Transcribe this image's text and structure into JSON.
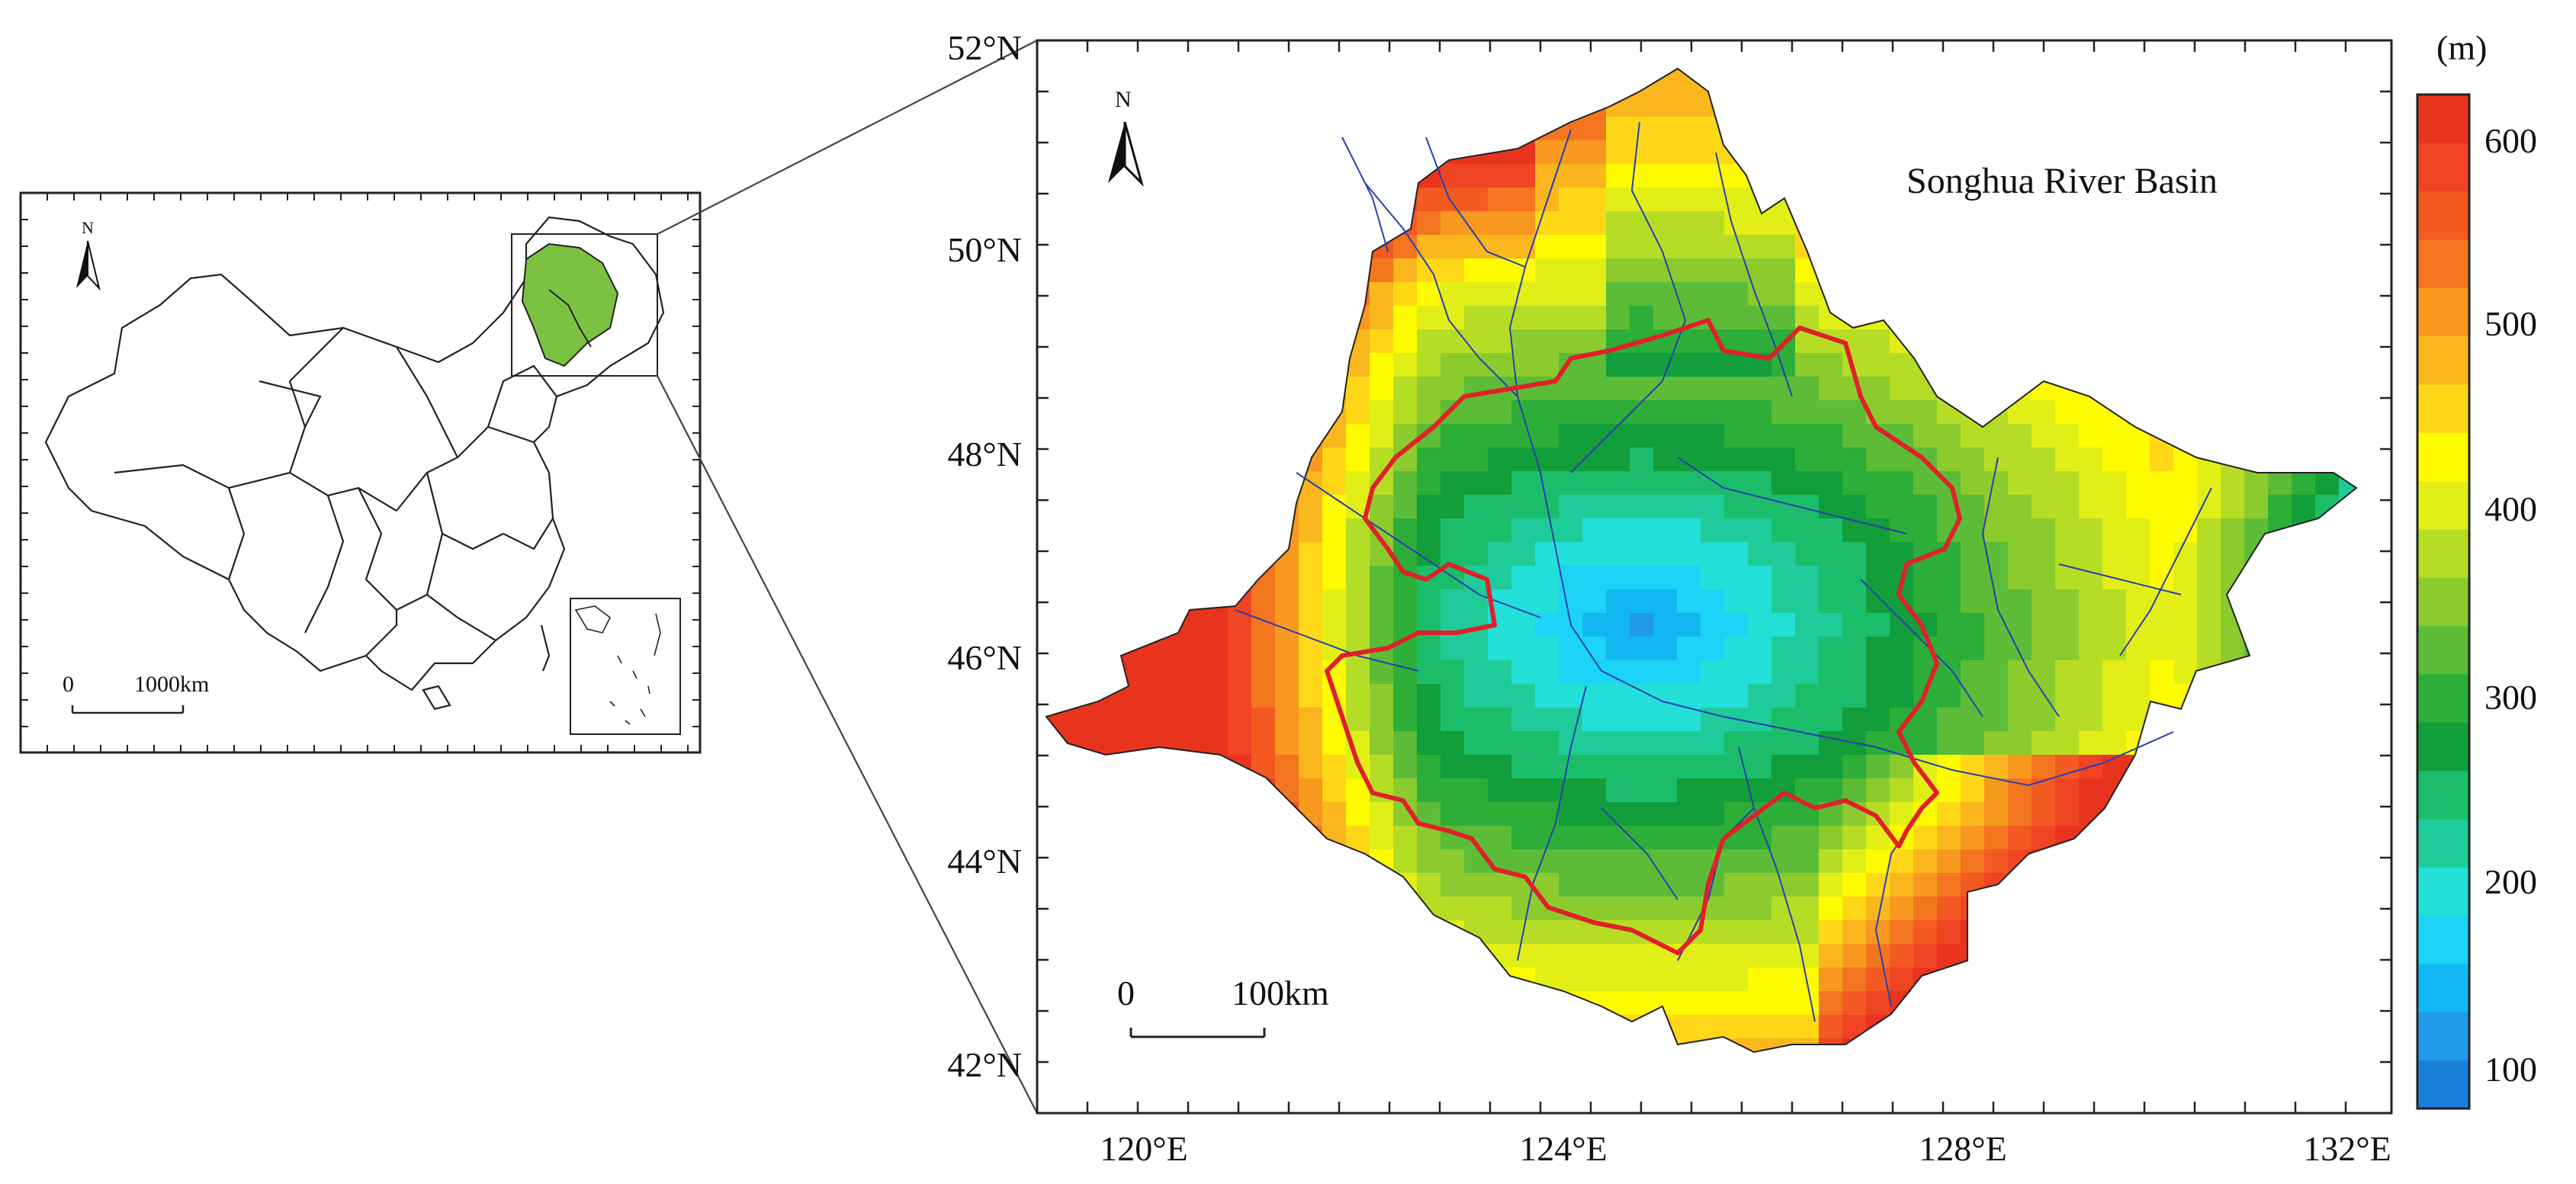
{
  "inset_map": {
    "north_label": "N",
    "scale_zero": "0",
    "scale_distance": "1000km",
    "highlight_color": "#7cc242"
  },
  "main_map": {
    "title": "Songhua River Basin",
    "north_label": "N",
    "scale_zero": "0",
    "scale_distance": "100km",
    "latitude_labels": [
      "52°N",
      "50°N",
      "48°N",
      "46°N",
      "44°N",
      "42°N"
    ],
    "longitude_labels": [
      "120°E",
      "124°E",
      "128°E",
      "132°E"
    ],
    "boundary_color": "#e0202a",
    "river_color": "#2a3fb0"
  },
  "colorbar": {
    "unit": "(m)",
    "tick_labels": [
      "600",
      "500",
      "400",
      "300",
      "200",
      "100"
    ],
    "colors": [
      "#1a7fd9",
      "#1f9ae8",
      "#12b7f2",
      "#1ad3f5",
      "#22e0d8",
      "#1fcc99",
      "#1bbd6a",
      "#129e3a",
      "#2cae38",
      "#5cbc37",
      "#8ccb2e",
      "#b6dd25",
      "#e2ef17",
      "#fffb00",
      "#ffd717",
      "#f9b71d",
      "#f7991e",
      "#f4751f",
      "#f25a21",
      "#ef4423",
      "#e8331e"
    ]
  }
}
